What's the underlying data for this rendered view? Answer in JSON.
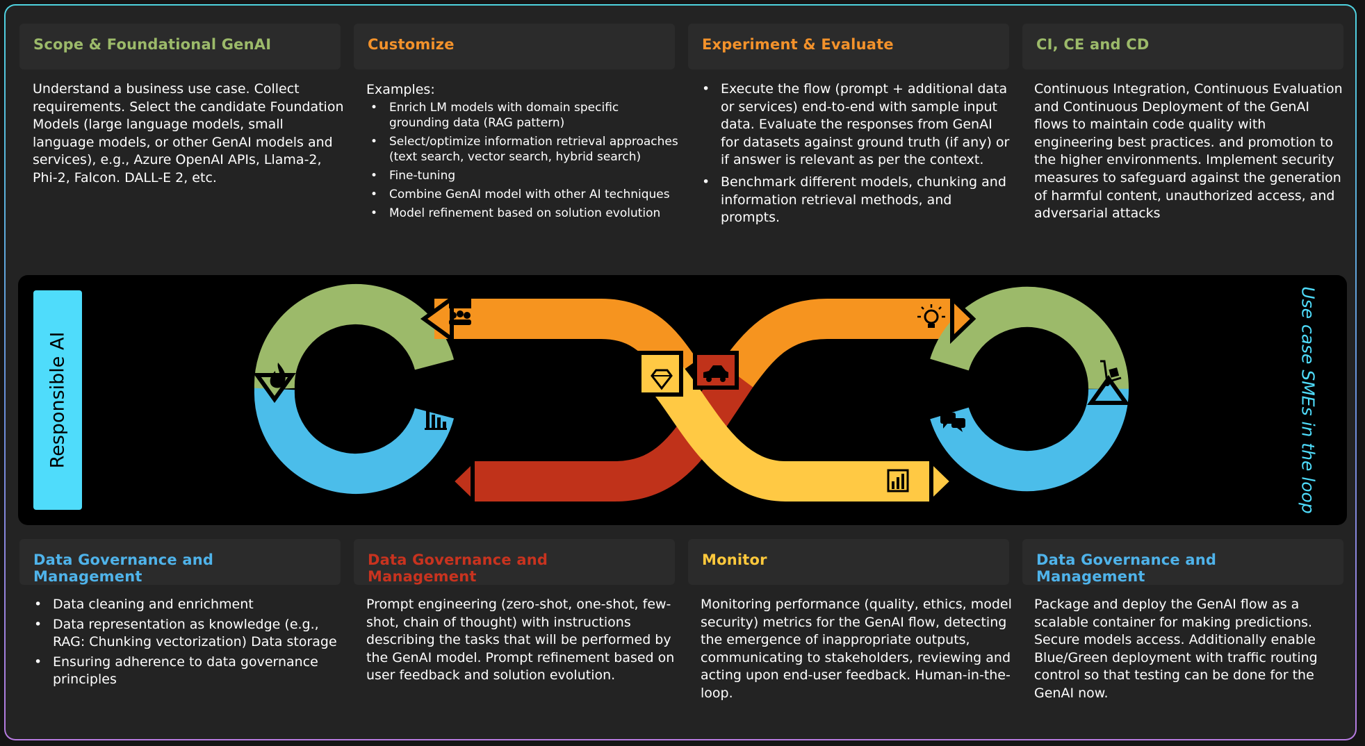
{
  "columns_top": [
    {
      "title": "Scope & Foundational GenAI",
      "title_color": "#9cba6a",
      "text": "Understand a business use case. Collect requirements. Select the candidate Foundation Models (large language models, small language models, or other GenAI models and services), e.g., Azure OpenAI APIs, Llama-2, Phi-2, Falcon. DALL-E 2, etc."
    },
    {
      "title": "Customize",
      "title_color": "#f3922b",
      "intro": "Examples:",
      "items": [
        "Enrich LM models with domain specific grounding data (RAG pattern)",
        "Select/optimize information retrieval approaches (text search, vector search, hybrid search)",
        "Fine-tuning",
        "Combine GenAI model with other AI techniques",
        "Model refinement based on solution evolution"
      ]
    },
    {
      "title": "Experiment & Evaluate",
      "title_color": "#f3922b",
      "items": [
        "Execute the flow (prompt + additional data or services) end-to-end with sample input data. Evaluate the responses from GenAI for datasets against ground truth (if any) or if answer is relevant as per the context.",
        "Benchmark different models, chunking and information retrieval methods, and prompts."
      ]
    },
    {
      "title": "CI, CE and CD",
      "title_color": "#9cba6a",
      "text": "Continuous Integration, Continuous Evaluation and Continuous Deployment of the GenAI flows to maintain code quality with engineering best practices. and promotion to the higher environments. Implement security measures to safeguard against the generation of harmful content, unauthorized access, and adversarial attacks"
    }
  ],
  "columns_bottom": [
    {
      "title": "Data Governance and Management",
      "title_color": "#4fb3ea",
      "items": [
        "Data cleaning and enrichment",
        "Data representation as knowledge (e.g., RAG: Chunking vectorization) Data storage",
        "Ensuring adherence to data governance principles"
      ]
    },
    {
      "title": "Data Governance and Management",
      "title_color": "#c8331f",
      "text": "Prompt engineering (zero-shot, one-shot, few-shot, chain of thought) with instructions describing the tasks that will be performed by the GenAI model. Prompt refinement based on user feedback and solution evolution."
    },
    {
      "title": "Monitor",
      "title_color": "#ffc93c",
      "text": "Monitoring performance (quality, ethics, model security) metrics for the GenAI flow, detecting the emergence of inappropriate outputs, communicating to stakeholders, reviewing and acting upon end-user feedback. Human-in-the-loop."
    },
    {
      "title": "Data Governance and Management",
      "title_color": "#4fb3ea",
      "text": "Package and deploy the GenAI flow as a scalable container for making predictions. Secure models access. Additionally enable Blue/Green deployment with traffic routing control so that testing can be done for the GenAI now."
    }
  ],
  "responsible_ai": "Responsible AI",
  "smes_label": "Use case SMEs in the loop",
  "colors": {
    "green": "#9cba6a",
    "blue": "#4bbdea",
    "orange": "#f6941f",
    "red": "#c0321a",
    "yellow": "#ffc944",
    "cyan": "#4fdcfb"
  },
  "icons": [
    "presentation-people-icon",
    "fire-icon",
    "bar-chart-icon",
    "whiteboard-presenter-icon",
    "diamond-icon",
    "car-icon",
    "lightbulb-icon",
    "hand-truck-icon",
    "chat-bubbles-icon",
    "stats-chart-icon",
    "bell-icon"
  ]
}
